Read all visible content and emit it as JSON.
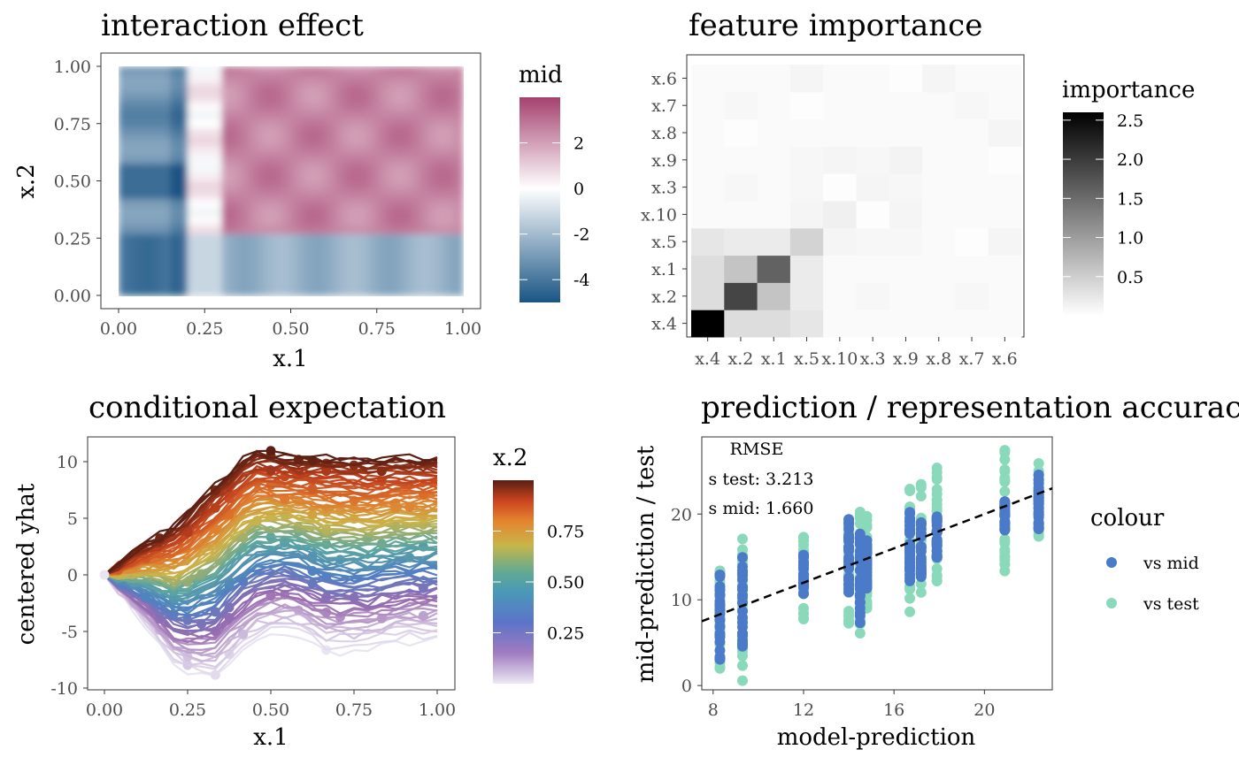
{
  "chart_data": [
    {
      "id": "interaction",
      "type": "heatmap",
      "title": "interaction effect",
      "xlabel": "x.1",
      "ylabel": "x.2",
      "xlim": [
        0,
        1
      ],
      "ylim": [
        0,
        1
      ],
      "xticks": [
        "0.00",
        "0.25",
        "0.50",
        "0.75",
        "1.00"
      ],
      "yticks": [
        "0.00",
        "0.25",
        "0.50",
        "0.75",
        "1.00"
      ],
      "x_breaks": [
        0.2,
        0.3
      ],
      "y_breaks": [
        0.27,
        0.5
      ],
      "cells_summary": [
        {
          "x_range": [
            0,
            0.25
          ],
          "y_range": [
            0.27,
            1
          ],
          "value": -3.5
        },
        {
          "x_range": [
            0.3,
            1
          ],
          "y_range": [
            0.27,
            1
          ],
          "value": 2.8
        },
        {
          "x_range": [
            0,
            0.25
          ],
          "y_range": [
            0,
            0.27
          ],
          "value": -4.5
        },
        {
          "x_range": [
            0.3,
            1
          ],
          "y_range": [
            0,
            0.27
          ],
          "value": -2.5
        }
      ],
      "legend": {
        "title": "mid",
        "ticks": [
          "2",
          "0",
          "-2",
          "-4"
        ],
        "tick_values": [
          2,
          0,
          -2,
          -4
        ],
        "range": [
          -5,
          4
        ],
        "colors": [
          "#1a5585",
          "#ffffff",
          "#a5416f"
        ]
      }
    },
    {
      "id": "importance",
      "type": "heatmap",
      "title": "feature importance",
      "x_categories": [
        "x.4",
        "x.2",
        "x.1",
        "x.5",
        "x.10",
        "x.3",
        "x.9",
        "x.8",
        "x.7",
        "x.6"
      ],
      "y_categories": [
        "x.4",
        "x.2",
        "x.1",
        "x.5",
        "x.10",
        "x.3",
        "x.9",
        "x.8",
        "x.7",
        "x.6"
      ],
      "values": [
        [
          2.6,
          0.35,
          0.35,
          0.25,
          0.05,
          0.05,
          0.05,
          0.05,
          0.05,
          0.05
        ],
        [
          0.35,
          1.9,
          0.6,
          0.2,
          0.05,
          0.08,
          0.05,
          0.05,
          0.08,
          0.05
        ],
        [
          0.35,
          0.6,
          1.6,
          0.2,
          0.05,
          0.05,
          0.05,
          0.05,
          0.05,
          0.05
        ],
        [
          0.25,
          0.2,
          0.2,
          0.45,
          0.1,
          0.08,
          0.08,
          0.05,
          0.02,
          0.1
        ],
        [
          0.05,
          0.05,
          0.05,
          0.1,
          0.15,
          0.02,
          0.1,
          0.05,
          0.05,
          0.05
        ],
        [
          0.05,
          0.08,
          0.05,
          0.08,
          0.02,
          0.1,
          0.08,
          0.05,
          0.05,
          0.05
        ],
        [
          0.05,
          0.05,
          0.05,
          0.08,
          0.1,
          0.08,
          0.12,
          0.05,
          0.05,
          0.02
        ],
        [
          0.05,
          0.02,
          0.05,
          0.05,
          0.05,
          0.05,
          0.05,
          0.05,
          0.05,
          0.1
        ],
        [
          0.05,
          0.08,
          0.05,
          0.02,
          0.05,
          0.05,
          0.05,
          0.05,
          0.08,
          0.05
        ],
        [
          0.05,
          0.05,
          0.05,
          0.1,
          0.05,
          0.05,
          0.02,
          0.1,
          0.05,
          0.05
        ]
      ],
      "legend": {
        "title": "importance",
        "ticks": [
          "2.5",
          "2.0",
          "1.5",
          "1.0",
          "0.5"
        ],
        "tick_values": [
          2.5,
          2.0,
          1.5,
          1.0,
          0.5
        ],
        "range": [
          0,
          2.6
        ]
      }
    },
    {
      "id": "ice",
      "type": "line",
      "title": "conditional expectation",
      "xlabel": "x.1",
      "ylabel": "centered yhat",
      "xlim": [
        0,
        1
      ],
      "ylim": [
        -10,
        12
      ],
      "xticks": [
        "0.00",
        "0.25",
        "0.50",
        "0.75",
        "1.00"
      ],
      "yticks": [
        "-10",
        "-5",
        "0",
        "5",
        "10"
      ],
      "ytick_values": [
        -10,
        -5,
        0,
        5,
        10
      ],
      "series_count": 100,
      "highest_curve": [
        0,
        2.5,
        4.5,
        8,
        11,
        10.5,
        10.5,
        10.2,
        10.4,
        10.4
      ],
      "lowest_curve": [
        0,
        -4,
        -8.5,
        -9.1,
        -6,
        -5,
        -6.8,
        -6.8,
        -6,
        -5.8
      ],
      "legend": {
        "title": "x.2",
        "ticks": [
          "0.75",
          "0.50",
          "0.25"
        ],
        "tick_values": [
          0.75,
          0.5,
          0.25
        ],
        "range": [
          0,
          1
        ],
        "colors": [
          "#e8e4f2",
          "#9a6bb0",
          "#4f7fc3",
          "#5aa6a0",
          "#cbb44a",
          "#e07a2e",
          "#c2421e",
          "#5a1e12"
        ]
      }
    },
    {
      "id": "accuracy",
      "type": "scatter",
      "title": "prediction / representation accuracy",
      "xlabel": "model-prediction",
      "ylabel": "mid-prediction / test",
      "xlim": [
        7.5,
        23
      ],
      "ylim": [
        -0.5,
        29
      ],
      "xticks": [
        "8",
        "12",
        "16",
        "20"
      ],
      "xtick_values": [
        8,
        12,
        16,
        20
      ],
      "yticks": [
        "0",
        "10",
        "20"
      ],
      "ytick_values": [
        0,
        10,
        20
      ],
      "x_clusters": [
        8.3,
        9.3,
        12,
        14,
        14.5,
        14.8,
        16.7,
        17.2,
        17.9,
        20.9,
        22.4
      ],
      "series": [
        {
          "name": "vs mid",
          "color": "#4a7ac8",
          "ranges": [
            [
              2.5,
              13.5
            ],
            [
              4,
              15.5
            ],
            [
              10.5,
              15.5
            ],
            [
              10.5,
              19.8
            ],
            [
              7,
              18.5
            ],
            [
              11,
              17.5
            ],
            [
              11,
              20.5
            ],
            [
              12.5,
              20
            ],
            [
              14.5,
              20
            ],
            [
              18,
              21.8
            ],
            [
              18,
              25
            ]
          ]
        },
        {
          "name": "vs test",
          "color": "#8ad9bb",
          "ranges": [
            [
              2,
              14
            ],
            [
              0.5,
              17.5
            ],
            [
              7.5,
              17.5
            ],
            [
              7,
              20
            ],
            [
              6,
              20.5
            ],
            [
              8.5,
              20.5
            ],
            [
              8.5,
              23.5
            ],
            [
              9.5,
              24
            ],
            [
              12,
              25.5
            ],
            [
              12.5,
              27.5
            ],
            [
              16.5,
              26
            ]
          ]
        }
      ],
      "reference_line": {
        "slope": 1,
        "intercept": 0,
        "style": "dashed",
        "color": "#000000"
      },
      "annotation": [
        "RMSE",
        "s test: 3.213",
        "s mid: 1.660"
      ],
      "legend": {
        "title": "colour",
        "entries": [
          "vs mid",
          "vs test"
        ]
      }
    }
  ]
}
